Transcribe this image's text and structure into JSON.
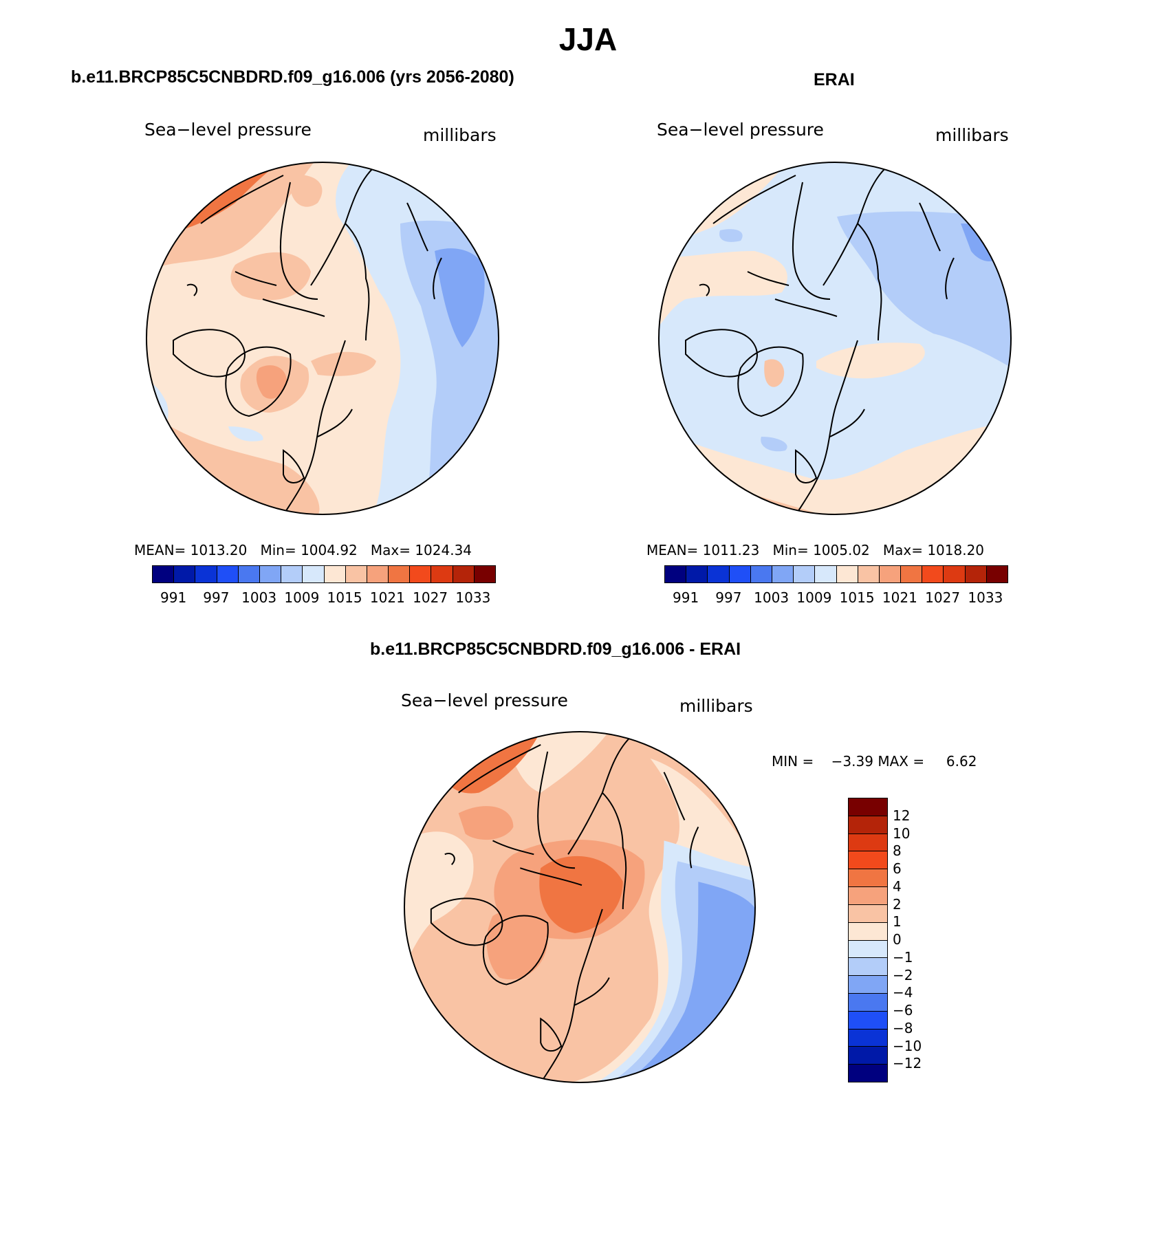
{
  "title": "JJA",
  "panels": {
    "model": {
      "title": "b.e11.BRCP85C5CNBDRD.f09_g16.006 (yrs 2056-2080)",
      "variable": "Sea−level pressure",
      "units": "millibars",
      "mean_label": "MEAN=",
      "mean": "1013.20",
      "min_label": "Min=",
      "min": "1004.92",
      "max_label": "Max=",
      "max": "1024.34"
    },
    "obs": {
      "title": "ERAI",
      "variable": "Sea−level pressure",
      "units": "millibars",
      "mean_label": "MEAN=",
      "mean": "1011.23",
      "min_label": "Min=",
      "min": "1005.02",
      "max_label": "Max=",
      "max": "1018.20"
    },
    "diff": {
      "title": "b.e11.BRCP85C5CNBDRD.f09_g16.006 - ERAI",
      "variable": "Sea−level pressure",
      "units": "millibars",
      "min_label": "MIN =",
      "min": "−3.39",
      "max_label": "MAX =",
      "max": "6.62"
    }
  },
  "colorbar_abs": {
    "colors": [
      "#00007f",
      "#0019a8",
      "#0a33d6",
      "#1f4ff7",
      "#4a78f0",
      "#80a6f5",
      "#b3cdf9",
      "#d7e8fb",
      "#fde7d4",
      "#f9c3a4",
      "#f6a27c",
      "#f07542",
      "#f24a1c",
      "#dd3a12",
      "#b42409",
      "#780000"
    ],
    "tick_labels": [
      "991",
      "997",
      "1003",
      "1009",
      "1015",
      "1021",
      "1027",
      "1033"
    ]
  },
  "colorbar_diff": {
    "colors": [
      "#780000",
      "#b42409",
      "#dd3a12",
      "#f24a1c",
      "#f07542",
      "#f6a27c",
      "#f9c3a4",
      "#fde7d4",
      "#d7e8fb",
      "#b3cdf9",
      "#80a6f5",
      "#4a78f0",
      "#1f4ff7",
      "#0a33d6",
      "#0019a8",
      "#00007f"
    ],
    "tick_labels": [
      "12",
      "10",
      "8",
      "6",
      "4",
      "2",
      "1",
      "0",
      "−1",
      "−2",
      "−4",
      "−6",
      "−8",
      "−10",
      "−12"
    ]
  },
  "chart_data": [
    {
      "type": "heatmap",
      "title": "b.e11.BRCP85C5CNBDRD.f09_g16.006 (yrs 2056-2080)",
      "variable": "Sea-level pressure",
      "units": "millibars",
      "projection": "north polar stereographic",
      "mean": 1013.2,
      "min": 1004.92,
      "max": 1024.34,
      "contour_levels": [
        991,
        994,
        997,
        1000,
        1003,
        1006,
        1009,
        1012,
        1015,
        1018,
        1021,
        1024,
        1027,
        1030,
        1033
      ]
    },
    {
      "type": "heatmap",
      "title": "ERAI",
      "variable": "Sea-level pressure",
      "units": "millibars",
      "projection": "north polar stereographic",
      "mean": 1011.23,
      "min": 1005.02,
      "max": 1018.2,
      "contour_levels": [
        991,
        994,
        997,
        1000,
        1003,
        1006,
        1009,
        1012,
        1015,
        1018,
        1021,
        1024,
        1027,
        1030,
        1033
      ]
    },
    {
      "type": "heatmap",
      "title": "b.e11.BRCP85C5CNBDRD.f09_g16.006 - ERAI",
      "variable": "Sea-level pressure difference",
      "units": "millibars",
      "projection": "north polar stereographic",
      "min": -3.39,
      "max": 6.62,
      "contour_levels": [
        -12,
        -10,
        -8,
        -6,
        -4,
        -2,
        -1,
        0,
        1,
        2,
        4,
        6,
        8,
        10,
        12
      ]
    }
  ]
}
